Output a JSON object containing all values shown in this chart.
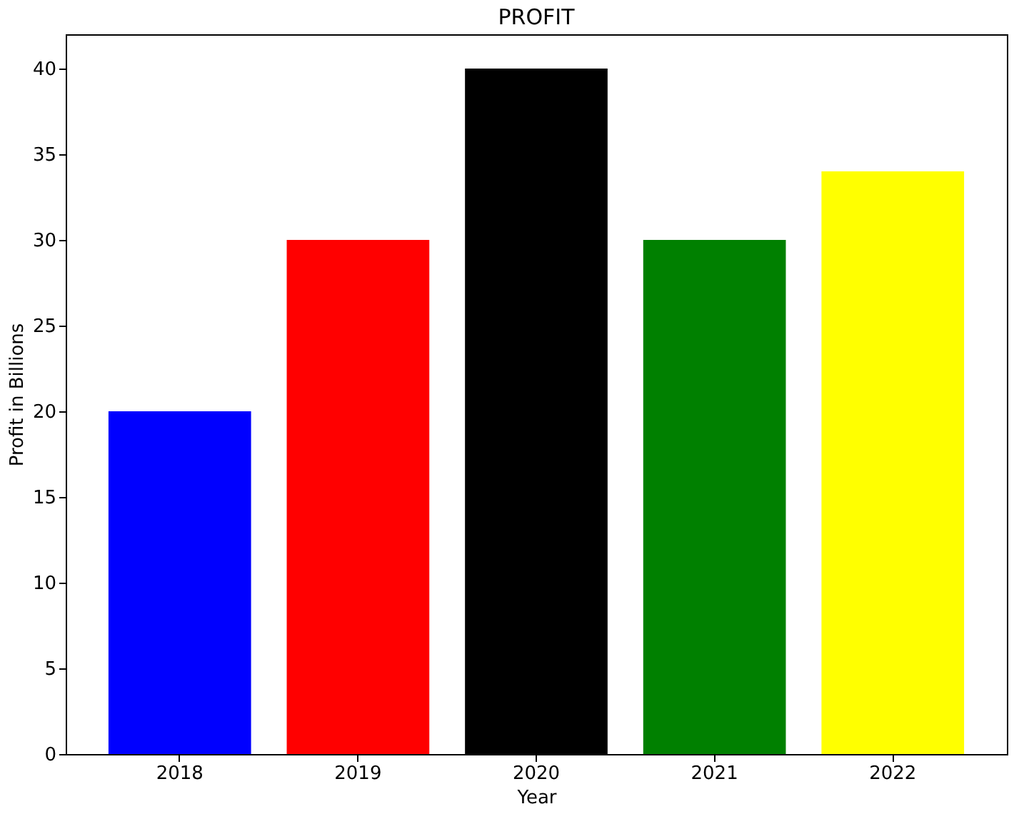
{
  "chart_data": {
    "type": "bar",
    "title": "PROFIT",
    "xlabel": "Year",
    "ylabel": "Profit in Billions",
    "categories": [
      "2018",
      "2019",
      "2020",
      "2021",
      "2022"
    ],
    "values": [
      20,
      30,
      40,
      30,
      34
    ],
    "colors": [
      "#0000ff",
      "#ff0000",
      "#000000",
      "#008000",
      "#ffff00"
    ],
    "ylim": [
      0,
      42
    ],
    "yticks": [
      0,
      5,
      10,
      15,
      20,
      25,
      30,
      35,
      40
    ],
    "grid": false
  }
}
